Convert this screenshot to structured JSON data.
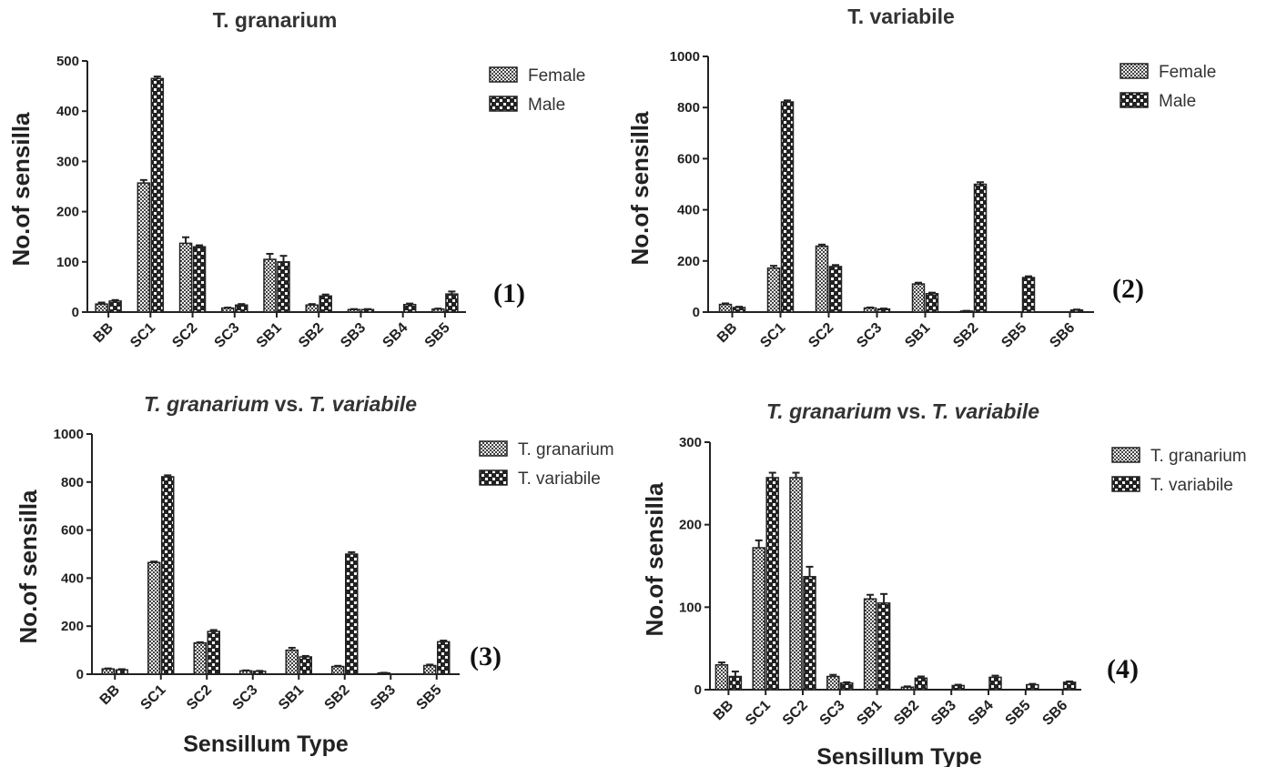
{
  "chart_data": [
    {
      "type": "bar",
      "title": "T. granarium",
      "ylabel": "No.of sensilla",
      "xlabel": "",
      "panel_label": "(1)",
      "ylim": [
        0,
        500
      ],
      "yticks": [
        0,
        100,
        200,
        300,
        400,
        500
      ],
      "categories": [
        "BB",
        "SC1",
        "SC2",
        "SC3",
        "SB1",
        "SB2",
        "SB3",
        "SB4",
        "SB5"
      ],
      "series": [
        {
          "name": "Female",
          "pattern": "dense",
          "values": [
            16,
            257,
            137,
            8,
            105,
            14,
            5,
            0,
            6
          ],
          "errors": [
            3,
            6,
            12,
            1,
            11,
            2,
            1,
            0,
            1
          ]
        },
        {
          "name": "Male",
          "pattern": "coarse",
          "values": [
            22,
            465,
            130,
            14,
            100,
            32,
            5,
            15,
            36
          ],
          "errors": [
            2,
            4,
            3,
            2,
            12,
            3,
            1,
            2,
            5
          ]
        }
      ],
      "legend": "top-right"
    },
    {
      "type": "bar",
      "title": "T. variabile",
      "ylabel": "No.of sensilla",
      "xlabel": "",
      "panel_label": "(2)",
      "ylim": [
        0,
        1000
      ],
      "yticks": [
        0,
        200,
        400,
        600,
        800,
        1000
      ],
      "categories": [
        "BB",
        "SC1",
        "SC2",
        "SC3",
        "SB1",
        "SB2",
        "SB5",
        "SB6"
      ],
      "series": [
        {
          "name": "Female",
          "pattern": "dense",
          "values": [
            30,
            172,
            258,
            16,
            110,
            4,
            0,
            0
          ],
          "errors": [
            4,
            9,
            6,
            2,
            5,
            1,
            0,
            0
          ]
        },
        {
          "name": "Male",
          "pattern": "coarse",
          "values": [
            18,
            822,
            178,
            12,
            72,
            500,
            135,
            8
          ],
          "errors": [
            3,
            6,
            6,
            2,
            4,
            8,
            5,
            2
          ]
        }
      ],
      "legend": "top-right"
    },
    {
      "type": "bar",
      "title": "T. granarium vs. T. variabile",
      "ylabel": "No.of sensilla",
      "xlabel": "Sensillum Type",
      "panel_label": "(3)",
      "ylim": [
        0,
        1000
      ],
      "yticks": [
        0,
        200,
        400,
        600,
        800,
        1000
      ],
      "categories": [
        "BB",
        "SC1",
        "SC2",
        "SC3",
        "SB1",
        "SB2",
        "SB3",
        "SB5"
      ],
      "series": [
        {
          "name": "T. granarium",
          "pattern": "dense",
          "values": [
            22,
            465,
            130,
            14,
            100,
            32,
            5,
            36
          ],
          "errors": [
            2,
            4,
            3,
            2,
            10,
            3,
            1,
            4
          ]
        },
        {
          "name": "T. variabile",
          "pattern": "coarse",
          "values": [
            18,
            822,
            178,
            12,
            72,
            500,
            0,
            135
          ],
          "errors": [
            3,
            6,
            6,
            2,
            4,
            8,
            0,
            5
          ]
        }
      ],
      "legend": "top-right"
    },
    {
      "type": "bar",
      "title": "T. granarium vs. T. variabile",
      "ylabel": "No.of sensilla",
      "xlabel": "Sensillum Type",
      "panel_label": "(4)",
      "ylim": [
        0,
        300
      ],
      "yticks": [
        0,
        100,
        200,
        300
      ],
      "categories": [
        "BB",
        "SC1",
        "SC2",
        "SC3",
        "SB1",
        "SB2",
        "SB3",
        "SB4",
        "SB5",
        "SB6"
      ],
      "series": [
        {
          "name": "T. granarium",
          "pattern": "dense",
          "values": [
            30,
            172,
            257,
            16,
            110,
            3,
            0,
            0,
            0,
            0
          ],
          "errors": [
            3,
            9,
            6,
            2,
            5,
            1,
            0,
            0,
            0,
            0
          ]
        },
        {
          "name": "T. variabile",
          "pattern": "coarse",
          "values": [
            16,
            257,
            137,
            8,
            105,
            14,
            5,
            15,
            6,
            9
          ],
          "errors": [
            6,
            6,
            12,
            1,
            11,
            2,
            1,
            2,
            1,
            1
          ]
        }
      ],
      "legend": "top-right"
    }
  ]
}
